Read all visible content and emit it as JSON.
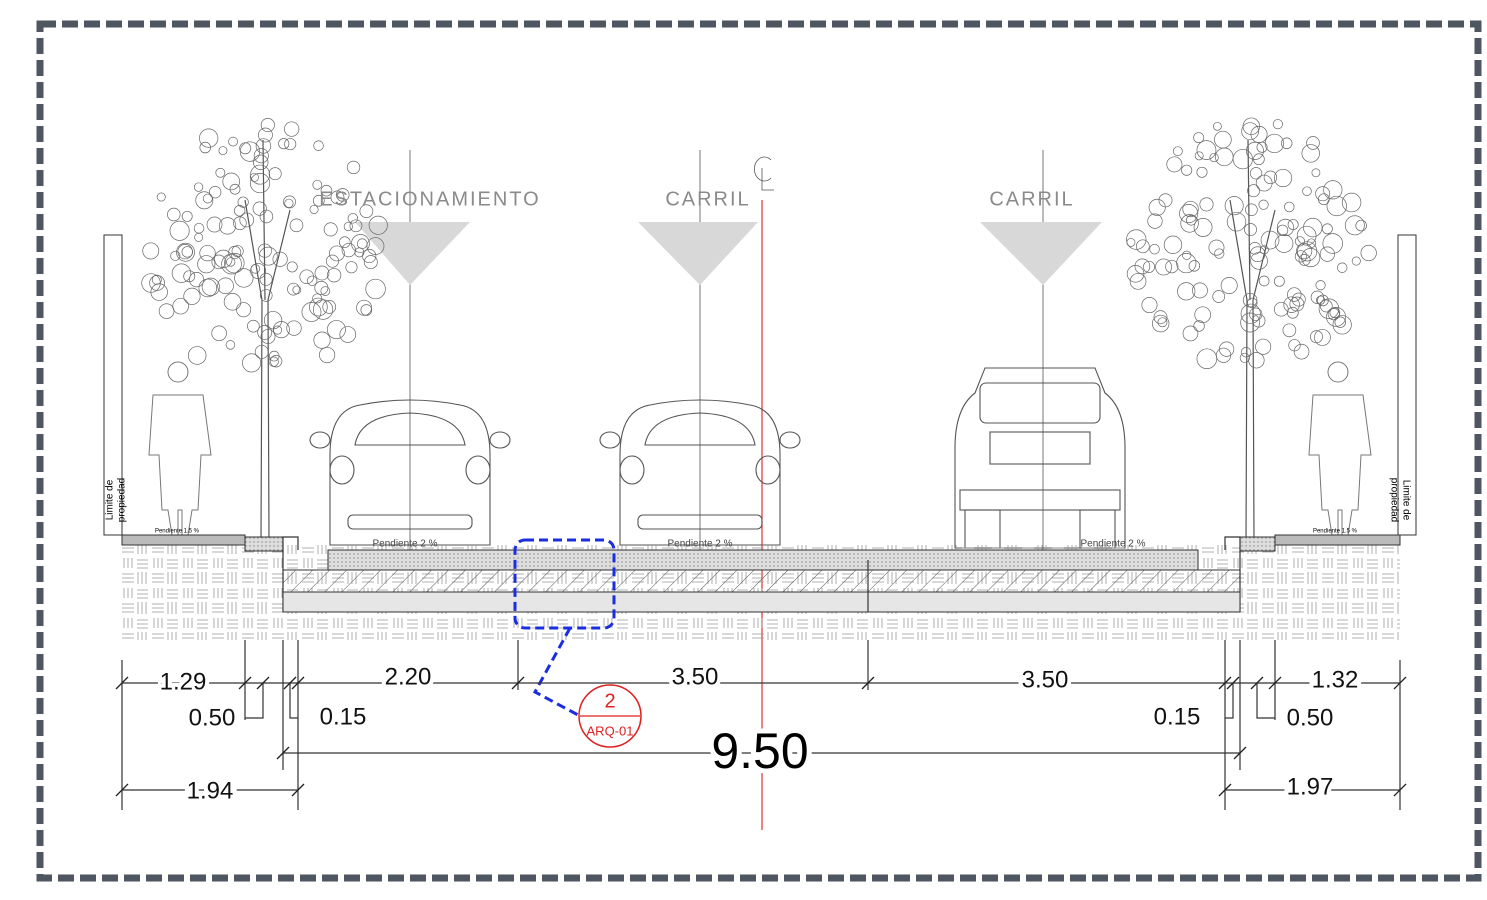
{
  "zones": [
    {
      "label": "ESTACIONAMIENTO"
    },
    {
      "label": "CARRIL"
    },
    {
      "label": "CARRIL"
    }
  ],
  "property_limit": {
    "left": [
      "Limite de",
      "propiedad"
    ],
    "right": [
      "Limite de",
      "propiedad"
    ]
  },
  "slopes": [
    "Pendiente 2 %",
    "Pendiente 2 %",
    "Pendiente 2 %"
  ],
  "sidewalk_slopes": [
    "Pendiente 1.5 %",
    "Pendiente 1.5 %"
  ],
  "dimensions": {
    "top": [
      "1.29",
      "2.20",
      "3.50",
      "3.50",
      "1.32"
    ],
    "middle": [
      "0.50",
      "0.15",
      "0.15",
      "0.50"
    ],
    "total": "9.50",
    "bottom": [
      "1.94",
      "1.97"
    ]
  },
  "callout": {
    "number": "2",
    "sheet": "ARQ-01"
  }
}
